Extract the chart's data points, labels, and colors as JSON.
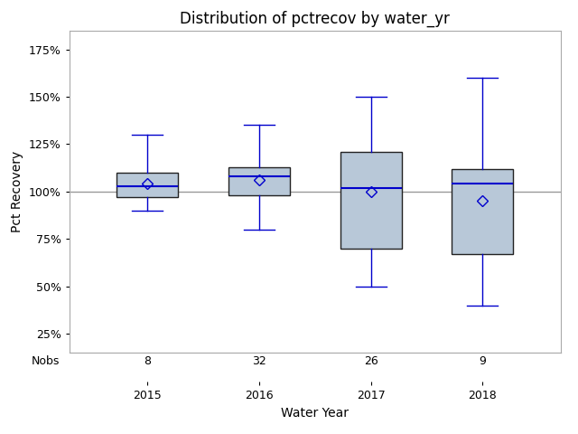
{
  "title": "Distribution of pctrecov by water_yr",
  "xlabel": "Water Year",
  "ylabel": "Pct Recovery",
  "years": [
    2015,
    2016,
    2017,
    2018
  ],
  "nobs": [
    8,
    32,
    26,
    9
  ],
  "boxes": [
    {
      "whislo": 90,
      "q1": 97,
      "med": 103,
      "q3": 110,
      "whishi": 130,
      "mean": 104
    },
    {
      "whislo": 80,
      "q1": 98,
      "med": 108,
      "q3": 113,
      "whishi": 135,
      "mean": 106
    },
    {
      "whislo": 50,
      "q1": 70,
      "med": 102,
      "q3": 121,
      "whishi": 150,
      "mean": 100
    },
    {
      "whislo": 40,
      "q1": 67,
      "med": 104,
      "q3": 112,
      "whishi": 160,
      "mean": 95
    }
  ],
  "yticks": [
    25,
    50,
    75,
    100,
    125,
    150,
    175
  ],
  "ylim": [
    15,
    185
  ],
  "hline_y": 100,
  "box_color": "#b8c8d8",
  "box_edge_color": "#222222",
  "median_color": "#0000cc",
  "whisker_color": "#0000cc",
  "cap_color": "#0000cc",
  "mean_marker_color": "#0000cc",
  "hline_color": "#999999",
  "background_color": "#ffffff",
  "title_fontsize": 12,
  "label_fontsize": 10,
  "tick_fontsize": 9,
  "nobs_fontsize": 9,
  "nobs_label": "Nobs"
}
